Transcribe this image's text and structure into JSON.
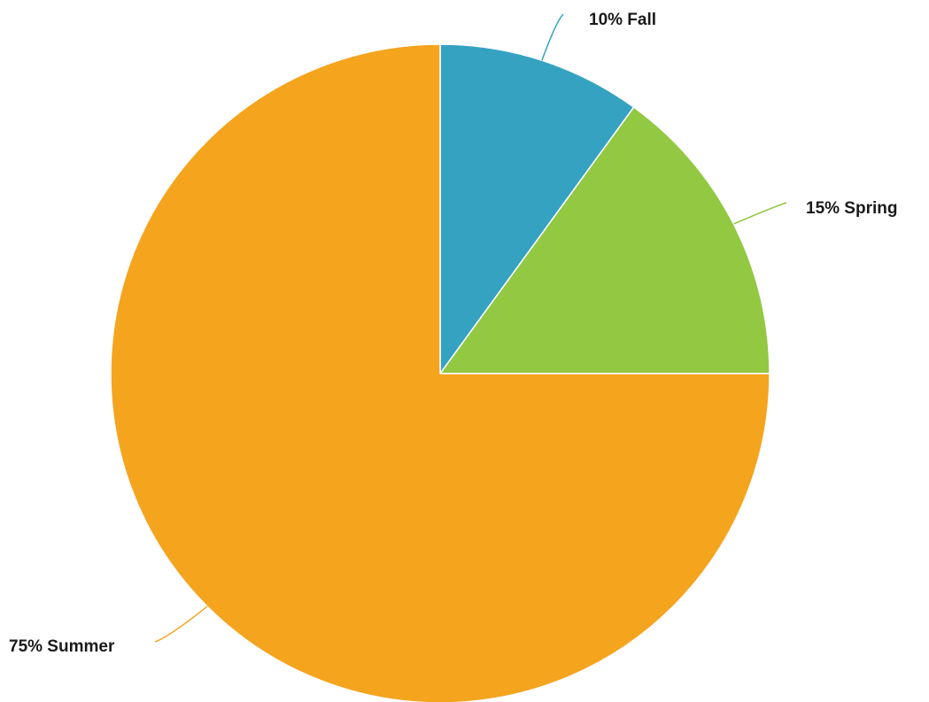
{
  "chart_data": {
    "type": "pie",
    "slices": [
      {
        "label": "Fall",
        "value": 10,
        "display": "10% Fall",
        "color": "#35a2c2"
      },
      {
        "label": "Spring",
        "value": 15,
        "display": "15% Spring",
        "color": "#93c842"
      },
      {
        "label": "Summer",
        "value": 75,
        "display": "75% Summer",
        "color": "#f5a41e"
      }
    ],
    "start_angle_deg": 0,
    "direction": "clockwise",
    "legend": "none"
  }
}
